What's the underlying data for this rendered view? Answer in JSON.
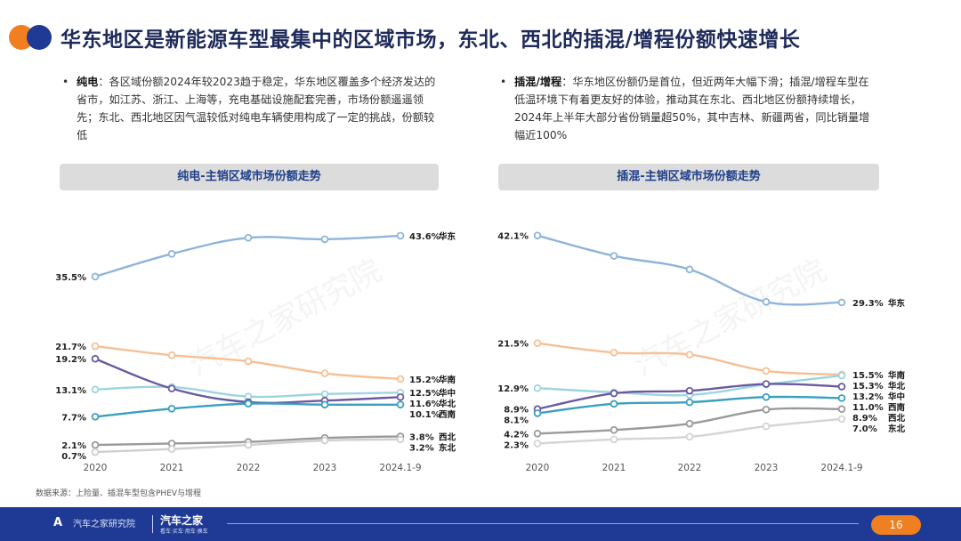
{
  "header": {
    "title": "华东地区是新能源车型最集中的区域市场，东北、西北的插混/增程份额快速增长",
    "dot_colors": [
      "#f07f22",
      "#1e3a94"
    ]
  },
  "bullets": {
    "left": {
      "label": "纯电",
      "text": "：各区域份额2024年较2023趋于稳定，华东地区覆盖多个经济发达的省市，如江苏、浙江、上海等，充电基础设施配套完善，市场份额遥遥领先；东北、西北地区因气温较低对纯电车辆使用构成了一定的挑战，份额较低"
    },
    "right": {
      "label": "插混/增程",
      "text": "：华东地区份额仍是首位，但近两年大幅下滑；插混/增程车型在低温环境下有着更友好的体验，推动其在东北、西北地区份额持续增长，2024年上半年大部分省份销量超50%，其中吉林、新疆两省，同比销量增幅近100%"
    }
  },
  "watermark": "汽车之家研究院",
  "source": "数据来源：上险量、插混车型包含PHEV与增程",
  "footer": {
    "brand1": "A",
    "brand1_sub": "汽车之家研究院",
    "brand2": "汽车之家",
    "brand2_sub": "看车·买车·用车·换车",
    "page": "16"
  },
  "chart_data": [
    {
      "type": "line",
      "title": "纯电-主销区域市场份额走势",
      "categories": [
        "2020",
        "2021",
        "2022",
        "2023",
        "2024.1-9"
      ],
      "ylim": [
        0,
        48
      ],
      "series": [
        {
          "name": "华东",
          "color": "#8fb4da",
          "values": [
            35.5,
            40.0,
            43.2,
            42.9,
            43.6
          ],
          "start_label": "35.5%",
          "end_label": "43.6%"
        },
        {
          "name": "华南",
          "color": "#f7bf93",
          "values": [
            21.7,
            19.9,
            18.7,
            16.3,
            15.2
          ],
          "start_label": "21.7%",
          "end_label": "15.2%"
        },
        {
          "name": "华中",
          "color": "#9ed4df",
          "values": [
            13.1,
            13.6,
            11.7,
            12.2,
            12.5
          ],
          "start_label": "13.1%",
          "end_label": "12.5%"
        },
        {
          "name": "华北",
          "color": "#6a5aa0",
          "values": [
            19.2,
            13.3,
            10.6,
            10.9,
            11.6
          ],
          "start_label": "19.2%",
          "end_label": "11.6%"
        },
        {
          "name": "西南",
          "color": "#3aa0c0",
          "values": [
            7.7,
            9.3,
            10.3,
            10.1,
            10.1
          ],
          "start_label": "7.7%",
          "end_label": "10.1%"
        },
        {
          "name": "西北",
          "color": "#9a9a9a",
          "values": [
            2.1,
            2.4,
            2.7,
            3.5,
            3.8
          ],
          "start_label": "2.1%",
          "end_label": "3.8%"
        },
        {
          "name": "东北",
          "color": "#cfcfcf",
          "values": [
            0.7,
            1.3,
            2.1,
            3.0,
            3.2
          ],
          "start_label": "0.7%",
          "end_label": "3.2%"
        }
      ]
    },
    {
      "type": "line",
      "title": "插混-主销区域市场份额走势",
      "categories": [
        "2020",
        "2021",
        "2022",
        "2023",
        "2024.1-9"
      ],
      "ylim": [
        0,
        48
      ],
      "series": [
        {
          "name": "华东",
          "color": "#8fb4da",
          "values": [
            42.1,
            38.2,
            35.6,
            29.4,
            29.3
          ],
          "start_label": "42.1%",
          "end_label": "29.3%"
        },
        {
          "name": "华南",
          "color": "#f7bf93",
          "values": [
            21.5,
            19.7,
            19.3,
            16.2,
            15.5
          ],
          "start_label": "21.5%",
          "end_label": "15.5%"
        },
        {
          "name": "华北",
          "color": "#9ed4df",
          "values": [
            12.9,
            12.1,
            11.6,
            13.6,
            15.3
          ],
          "start_label": "12.9%",
          "end_label": "15.3%"
        },
        {
          "name": "华中",
          "color": "#6a5aa0",
          "values": [
            8.9,
            11.9,
            12.4,
            13.7,
            13.2
          ],
          "start_label": "8.9%",
          "end_label": "13.2%"
        },
        {
          "name": "西南",
          "color": "#3aa0c0",
          "values": [
            8.1,
            9.9,
            10.2,
            11.2,
            11.0
          ],
          "start_label": "8.1%",
          "end_label": "11.0%"
        },
        {
          "name": "西北",
          "color": "#9a9a9a",
          "values": [
            4.2,
            4.9,
            6.1,
            8.8,
            8.9
          ],
          "start_label": "4.2%",
          "end_label": "8.9%"
        },
        {
          "name": "东北",
          "color": "#d4d4d4",
          "values": [
            2.3,
            3.1,
            3.6,
            5.6,
            7.0
          ],
          "start_label": "2.3%",
          "end_label": "7.0%"
        }
      ]
    }
  ]
}
